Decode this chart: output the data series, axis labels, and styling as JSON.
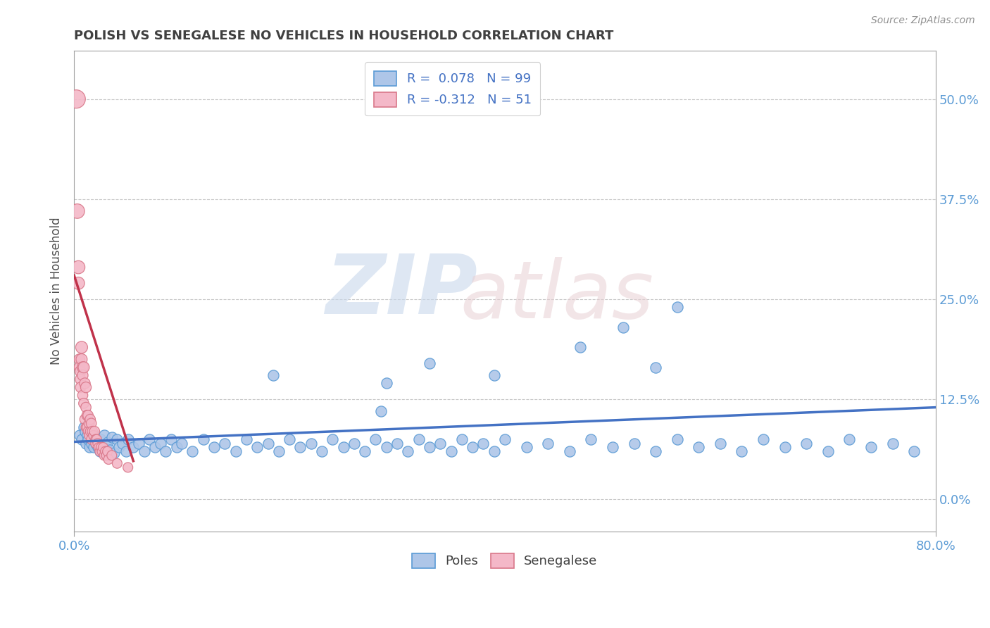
{
  "title": "POLISH VS SENEGALESE NO VEHICLES IN HOUSEHOLD CORRELATION CHART",
  "source": "Source: ZipAtlas.com",
  "ylabel": "No Vehicles in Household",
  "ytick_labels": [
    "0.0%",
    "12.5%",
    "25.0%",
    "37.5%",
    "50.0%"
  ],
  "ytick_values": [
    0.0,
    0.125,
    0.25,
    0.375,
    0.5
  ],
  "xlim": [
    0.0,
    0.8
  ],
  "ylim": [
    -0.04,
    0.56
  ],
  "poles_color": "#aec6e8",
  "poles_edge_color": "#5b9bd5",
  "senegalese_color": "#f4b8c8",
  "senegalese_edge_color": "#d9788a",
  "trend_poles_color": "#4472c4",
  "trend_senegalese_color": "#c0324a",
  "legend_R_poles": "R =  0.078",
  "legend_N_poles": "N = 99",
  "legend_R_senegalese": "R = -0.312",
  "legend_N_senegalese": "N = 51",
  "poles_x": [
    0.005,
    0.007,
    0.009,
    0.01,
    0.011,
    0.012,
    0.013,
    0.014,
    0.015,
    0.016,
    0.017,
    0.018,
    0.019,
    0.02,
    0.021,
    0.022,
    0.023,
    0.024,
    0.025,
    0.026,
    0.028,
    0.03,
    0.031,
    0.033,
    0.035,
    0.037,
    0.04,
    0.042,
    0.045,
    0.048,
    0.05,
    0.055,
    0.06,
    0.065,
    0.07,
    0.075,
    0.08,
    0.085,
    0.09,
    0.095,
    0.1,
    0.11,
    0.12,
    0.13,
    0.14,
    0.15,
    0.16,
    0.17,
    0.18,
    0.19,
    0.2,
    0.21,
    0.22,
    0.23,
    0.24,
    0.25,
    0.26,
    0.27,
    0.28,
    0.29,
    0.3,
    0.31,
    0.32,
    0.33,
    0.34,
    0.35,
    0.36,
    0.37,
    0.38,
    0.39,
    0.4,
    0.42,
    0.44,
    0.46,
    0.48,
    0.5,
    0.52,
    0.54,
    0.56,
    0.58,
    0.6,
    0.62,
    0.64,
    0.66,
    0.68,
    0.7,
    0.72,
    0.74,
    0.76,
    0.78,
    0.47,
    0.39,
    0.51,
    0.54,
    0.56,
    0.29,
    0.33,
    0.285,
    0.185
  ],
  "poles_y": [
    0.08,
    0.075,
    0.09,
    0.085,
    0.07,
    0.08,
    0.075,
    0.065,
    0.085,
    0.07,
    0.075,
    0.065,
    0.08,
    0.07,
    0.075,
    0.065,
    0.07,
    0.06,
    0.075,
    0.065,
    0.08,
    0.068,
    0.072,
    0.062,
    0.078,
    0.058,
    0.075,
    0.065,
    0.07,
    0.06,
    0.075,
    0.065,
    0.07,
    0.06,
    0.075,
    0.065,
    0.07,
    0.06,
    0.075,
    0.065,
    0.07,
    0.06,
    0.075,
    0.065,
    0.07,
    0.06,
    0.075,
    0.065,
    0.07,
    0.06,
    0.075,
    0.065,
    0.07,
    0.06,
    0.075,
    0.065,
    0.07,
    0.06,
    0.075,
    0.065,
    0.07,
    0.06,
    0.075,
    0.065,
    0.07,
    0.06,
    0.075,
    0.065,
    0.07,
    0.06,
    0.075,
    0.065,
    0.07,
    0.06,
    0.075,
    0.065,
    0.07,
    0.06,
    0.075,
    0.065,
    0.07,
    0.06,
    0.075,
    0.065,
    0.07,
    0.06,
    0.075,
    0.065,
    0.07,
    0.06,
    0.19,
    0.155,
    0.215,
    0.165,
    0.24,
    0.145,
    0.17,
    0.11,
    0.155
  ],
  "senegalese_x": [
    0.002,
    0.003,
    0.004,
    0.004,
    0.005,
    0.005,
    0.006,
    0.006,
    0.006,
    0.007,
    0.007,
    0.008,
    0.008,
    0.008,
    0.009,
    0.009,
    0.01,
    0.01,
    0.011,
    0.011,
    0.011,
    0.012,
    0.012,
    0.013,
    0.013,
    0.014,
    0.014,
    0.015,
    0.015,
    0.016,
    0.016,
    0.017,
    0.018,
    0.019,
    0.02,
    0.02,
    0.021,
    0.022,
    0.023,
    0.024,
    0.025,
    0.026,
    0.027,
    0.028,
    0.029,
    0.03,
    0.031,
    0.032,
    0.035,
    0.04,
    0.05
  ],
  "senegalese_y": [
    0.5,
    0.36,
    0.29,
    0.27,
    0.175,
    0.165,
    0.16,
    0.15,
    0.14,
    0.175,
    0.19,
    0.165,
    0.155,
    0.13,
    0.165,
    0.12,
    0.145,
    0.1,
    0.14,
    0.115,
    0.09,
    0.105,
    0.09,
    0.105,
    0.085,
    0.095,
    0.08,
    0.1,
    0.085,
    0.095,
    0.075,
    0.085,
    0.08,
    0.085,
    0.075,
    0.07,
    0.075,
    0.07,
    0.065,
    0.06,
    0.065,
    0.06,
    0.065,
    0.055,
    0.06,
    0.055,
    0.06,
    0.05,
    0.055,
    0.045,
    0.04
  ],
  "poles_trend_x": [
    0.0,
    0.8
  ],
  "poles_trend_y": [
    0.072,
    0.115
  ],
  "sene_trend_x": [
    0.0,
    0.055
  ],
  "sene_trend_y": [
    0.28,
    0.048
  ]
}
